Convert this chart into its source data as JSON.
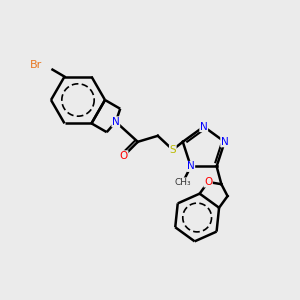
{
  "background_color": "#ebebeb",
  "fig_width": 3.0,
  "fig_height": 3.0,
  "dpi": 100,
  "bond_color": "#000000",
  "bond_width": 1.5,
  "colors": {
    "Br": "#e87722",
    "N": "#0000ff",
    "O": "#ff0000",
    "S": "#bbbb00",
    "C": "#000000"
  }
}
